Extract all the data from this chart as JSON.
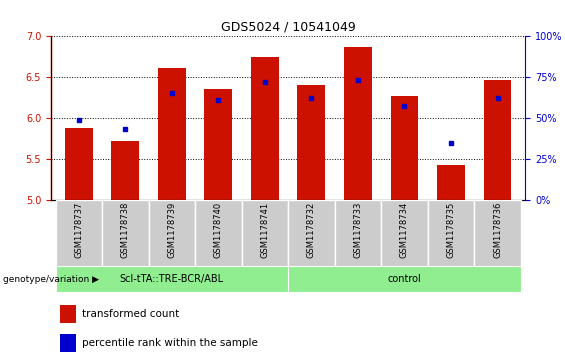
{
  "title": "GDS5024 / 10541049",
  "samples": [
    "GSM1178737",
    "GSM1178738",
    "GSM1178739",
    "GSM1178740",
    "GSM1178741",
    "GSM1178732",
    "GSM1178733",
    "GSM1178734",
    "GSM1178735",
    "GSM1178736"
  ],
  "red_values": [
    5.88,
    5.72,
    6.61,
    6.35,
    6.75,
    6.4,
    6.87,
    6.27,
    5.43,
    6.47
  ],
  "blue_values": [
    5.97,
    5.86,
    6.3,
    6.22,
    6.44,
    6.25,
    6.47,
    6.15,
    5.69,
    6.25
  ],
  "ylim": [
    5.0,
    7.0
  ],
  "y_ticks": [
    5.0,
    5.5,
    6.0,
    6.5,
    7.0
  ],
  "right_yticks": [
    0,
    25,
    50,
    75,
    100
  ],
  "right_ylabels": [
    "0%",
    "25%",
    "50%",
    "75%",
    "100%"
  ],
  "bar_color": "#cc1100",
  "dot_color": "#0000cc",
  "bg_color": "#cccccc",
  "group1_label": "Scl-tTA::TRE-BCR/ABL",
  "group2_label": "control",
  "group_color": "#90ee90",
  "genotype_label": "genotype/variation",
  "legend_red": "transformed count",
  "legend_blue": "percentile rank within the sample",
  "bar_width": 0.6
}
